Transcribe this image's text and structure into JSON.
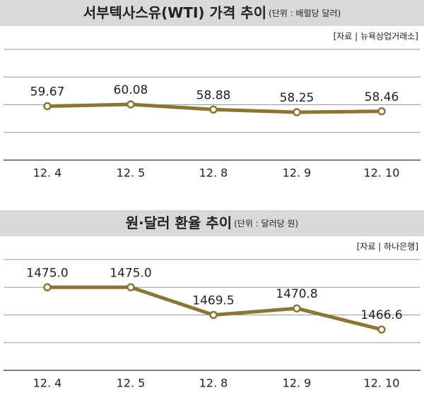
{
  "chart_data": [
    {
      "type": "line",
      "title": "서부텍사스유(WTI) 가격 추이",
      "subtitle": "(단위 : 배럴당 달러)",
      "source": "[자료 | 뉴욕상업거래소]",
      "categories": [
        "12. 4",
        "12. 5",
        "12. 8",
        "12. 9",
        "12. 10"
      ],
      "values": [
        59.67,
        60.08,
        58.88,
        58.25,
        58.46
      ],
      "color": "#8a7534",
      "ylim": [
        47,
        73
      ],
      "yticks": [
        47,
        53.5,
        60,
        66.5,
        73
      ],
      "grid": true
    },
    {
      "type": "line",
      "title": "원·달러 환율 추이",
      "subtitle": "(단위 : 달러당 원)",
      "source": "[자료 | 하나은행]",
      "categories": [
        "12. 4",
        "12. 5",
        "12. 8",
        "12. 9",
        "12. 10"
      ],
      "values": [
        1475.0,
        1475.0,
        1469.5,
        1470.8,
        1466.6
      ],
      "value_labels": [
        "1475.0",
        "1475.0",
        "1469.5",
        "1470.8",
        "1466.6"
      ],
      "color": "#8a7534",
      "ylim": [
        1458.5,
        1480.5
      ],
      "yticks": [
        1458.5,
        1464,
        1469.5,
        1475,
        1480.5
      ],
      "grid": true
    }
  ]
}
